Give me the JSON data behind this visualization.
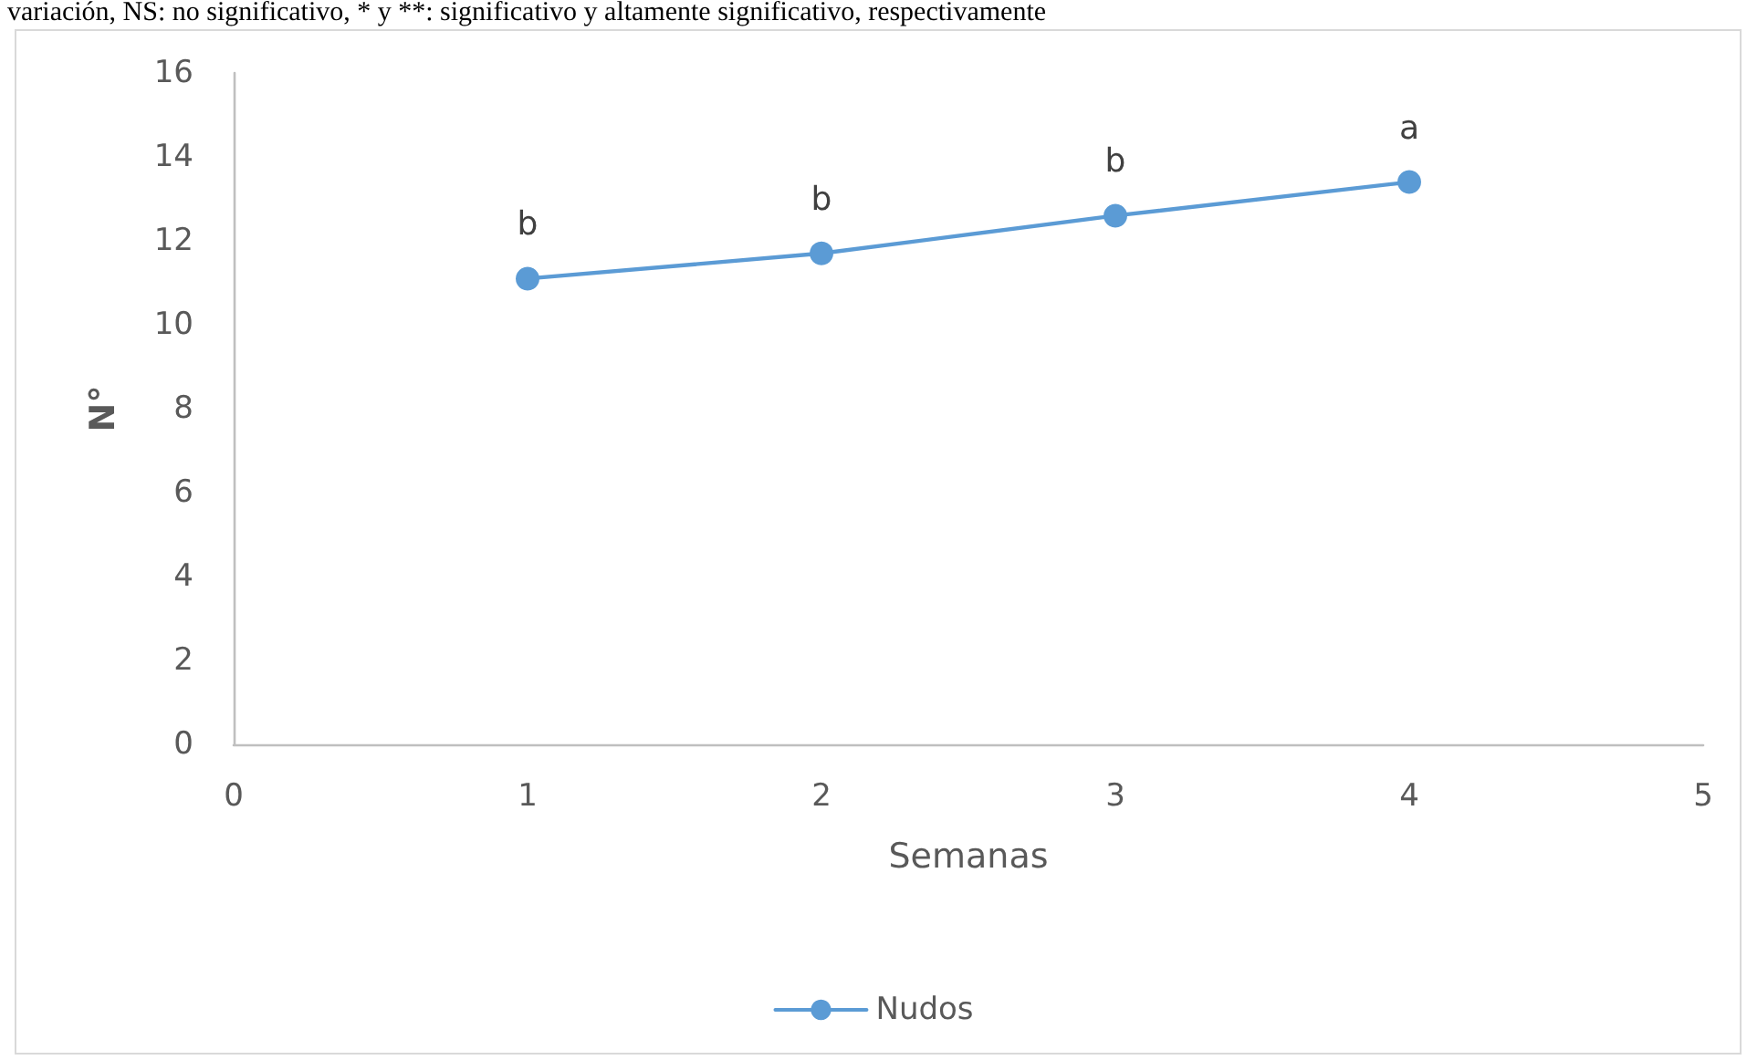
{
  "chart_data": {
    "type": "line",
    "annotations": [
      "variación, NS: no significativo, * y **: significativo y altamente significativo, respectivamente"
    ],
    "xlabel": "Semanas",
    "ylabel": "N°",
    "x": [
      1,
      2,
      3,
      4
    ],
    "series": [
      {
        "name": "Nudos",
        "color": "#5b9bd5",
        "values": [
          11.1,
          11.7,
          12.6,
          13.4
        ],
        "value_labels": [
          "b",
          "b",
          "b",
          "a"
        ]
      }
    ],
    "xlim": [
      0,
      5
    ],
    "xticks": [
      0,
      1,
      2,
      3,
      4,
      5
    ],
    "ylim": [
      0,
      16
    ],
    "yticks": [
      0,
      2,
      4,
      6,
      8,
      10,
      12,
      14,
      16
    ],
    "grid": false,
    "legend": "bottom",
    "marker": "circle",
    "line_style": "solid"
  }
}
